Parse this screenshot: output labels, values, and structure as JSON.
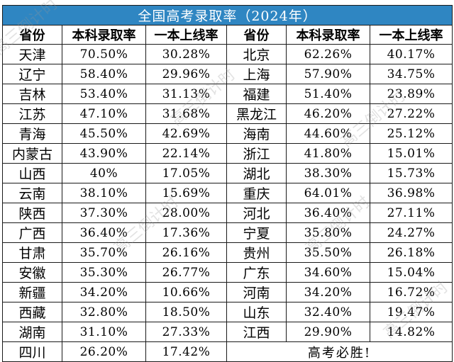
{
  "title": "全国高考录取率（2024年）",
  "headers": [
    "省份",
    "本科录取率",
    "一本上线率",
    "省份",
    "本科录取率",
    "一本上线率"
  ],
  "rows": [
    [
      "天津",
      "70.50%",
      "30.28%",
      "北京",
      "62.26%",
      "40.17%"
    ],
    [
      "辽宁",
      "58.40%",
      "29.96%",
      "上海",
      "57.90%",
      "34.75%"
    ],
    [
      "吉林",
      "53.40%",
      "31.13%",
      "福建",
      "51.40%",
      "23.89%"
    ],
    [
      "江苏",
      "47.10%",
      "31.68%",
      "黑龙江",
      "46.20%",
      "27.22%"
    ],
    [
      "青海",
      "45.50%",
      "42.69%",
      "海南",
      "44.60%",
      "25.12%"
    ],
    [
      "内蒙古",
      "43.90%",
      "22.14%",
      "浙江",
      "41.80%",
      "15.01%"
    ],
    [
      "山西",
      "40%",
      "17.05%",
      "湖北",
      "38.30%",
      "15.73%"
    ],
    [
      "云南",
      "38.10%",
      "15.69%",
      "重庆",
      "64.01%",
      "36.98%"
    ],
    [
      "陕西",
      "37.30%",
      "28.00%",
      "河北",
      "36.40%",
      "27.11%"
    ],
    [
      "广西",
      "36.40%",
      "17.36%",
      "宁夏",
      "35.80%",
      "24.27%"
    ],
    [
      "甘肃",
      "35.70%",
      "26.16%",
      "贵州",
      "35.50%",
      "26.18%"
    ],
    [
      "安徽",
      "35.30%",
      "26.77%",
      "广东",
      "34.60%",
      "15.04%"
    ],
    [
      "新疆",
      "34.20%",
      "10.66%",
      "河南",
      "34.20%",
      "16.72%"
    ],
    [
      "西藏",
      "32.80%",
      "18.50%",
      "山东",
      "32.40%",
      "19.47%"
    ],
    [
      "湖南",
      "31.10%",
      "27.33%",
      "江西",
      "29.90%",
      "14.82%"
    ],
    [
      "四川",
      "26.20%",
      "17.42%"
    ]
  ],
  "slogan": "高考必胜!",
  "watermark": "高三倒计时",
  "colors": {
    "title_bg": "#2f86c2",
    "title_text": "#ffffff",
    "border": "#1a1a1a"
  }
}
